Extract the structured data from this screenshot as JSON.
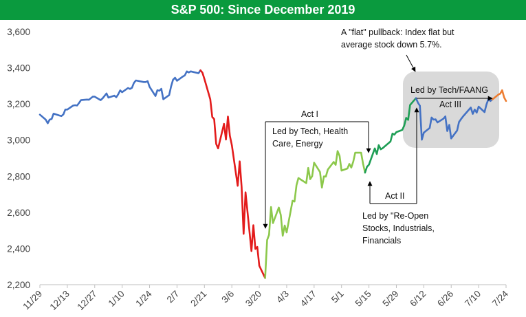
{
  "title": "S&P 500: Since December 2019",
  "colors": {
    "title_bg": "#0a9a3e",
    "blue": "#4472c4",
    "red": "#e31b1b",
    "light_green": "#8cc84b",
    "green": "#1e9e55",
    "orange": "#ed7d31",
    "highlight_box": "#d9d9d9"
  },
  "chart_data": {
    "type": "line",
    "title": "S&P 500: Since December 2019",
    "xlabel": "",
    "ylabel": "",
    "ylim": [
      2200,
      3600
    ],
    "yticks": [
      2200,
      2400,
      2600,
      2800,
      3000,
      3200,
      3400,
      3600
    ],
    "ytick_labels": [
      "2,200",
      "2,400",
      "2,600",
      "2,800",
      "3,000",
      "3,200",
      "3,400",
      "3,600"
    ],
    "xticks": [
      "2019-11-29",
      "2019-12-13",
      "2019-12-27",
      "2020-01-10",
      "2020-01-24",
      "2020-02-07",
      "2020-02-21",
      "2020-03-06",
      "2020-03-20",
      "2020-04-03",
      "2020-04-17",
      "2020-05-01",
      "2020-05-15",
      "2020-05-29",
      "2020-06-12",
      "2020-06-26",
      "2020-07-10",
      "2020-07-24"
    ],
    "xtick_labels": [
      "11/29",
      "12/13",
      "12/27",
      "1/10",
      "1/24",
      "2/7",
      "2/21",
      "3/6",
      "3/20",
      "4/3",
      "4/17",
      "5/1",
      "5/15",
      "5/29",
      "6/12",
      "6/26",
      "7/10",
      "7/24"
    ],
    "xlim": [
      "2019-11-29",
      "2020-07-24"
    ],
    "grid": false,
    "legend": "none",
    "series": [
      {
        "color": "#4472c4",
        "points": [
          [
            "2019-11-29",
            3141
          ],
          [
            "2019-12-02",
            3113
          ],
          [
            "2019-12-03",
            3093
          ],
          [
            "2019-12-04",
            3113
          ],
          [
            "2019-12-05",
            3117
          ],
          [
            "2019-12-06",
            3146
          ],
          [
            "2019-12-09",
            3136
          ],
          [
            "2019-12-10",
            3133
          ],
          [
            "2019-12-11",
            3142
          ],
          [
            "2019-12-12",
            3169
          ],
          [
            "2019-12-13",
            3169
          ],
          [
            "2019-12-16",
            3191
          ],
          [
            "2019-12-17",
            3193
          ],
          [
            "2019-12-18",
            3191
          ],
          [
            "2019-12-19",
            3206
          ],
          [
            "2019-12-20",
            3221
          ],
          [
            "2019-12-23",
            3224
          ],
          [
            "2019-12-24",
            3223
          ],
          [
            "2019-12-26",
            3240
          ],
          [
            "2019-12-27",
            3240
          ],
          [
            "2019-12-30",
            3221
          ],
          [
            "2019-12-31",
            3231
          ],
          [
            "2020-01-02",
            3258
          ],
          [
            "2020-01-03",
            3235
          ],
          [
            "2020-01-06",
            3246
          ],
          [
            "2020-01-07",
            3237
          ],
          [
            "2020-01-08",
            3253
          ],
          [
            "2020-01-09",
            3275
          ],
          [
            "2020-01-10",
            3265
          ],
          [
            "2020-01-13",
            3288
          ],
          [
            "2020-01-14",
            3283
          ],
          [
            "2020-01-15",
            3289
          ],
          [
            "2020-01-16",
            3316
          ],
          [
            "2020-01-17",
            3330
          ],
          [
            "2020-01-21",
            3321
          ],
          [
            "2020-01-22",
            3321
          ],
          [
            "2020-01-23",
            3326
          ],
          [
            "2020-01-24",
            3295
          ],
          [
            "2020-01-27",
            3244
          ],
          [
            "2020-01-28",
            3276
          ],
          [
            "2020-01-29",
            3273
          ],
          [
            "2020-01-30",
            3284
          ],
          [
            "2020-01-31",
            3226
          ],
          [
            "2020-02-03",
            3249
          ],
          [
            "2020-02-04",
            3298
          ],
          [
            "2020-02-05",
            3334
          ],
          [
            "2020-02-06",
            3345
          ],
          [
            "2020-02-07",
            3328
          ],
          [
            "2020-02-10",
            3352
          ],
          [
            "2020-02-11",
            3358
          ],
          [
            "2020-02-12",
            3380
          ],
          [
            "2020-02-13",
            3374
          ],
          [
            "2020-02-14",
            3380
          ],
          [
            "2020-02-18",
            3370
          ],
          [
            "2020-02-19",
            3386
          ]
        ]
      },
      {
        "color": "#e31b1b",
        "points": [
          [
            "2020-02-19",
            3386
          ],
          [
            "2020-02-20",
            3373
          ],
          [
            "2020-02-21",
            3338
          ],
          [
            "2020-02-24",
            3226
          ],
          [
            "2020-02-25",
            3128
          ],
          [
            "2020-02-26",
            3116
          ],
          [
            "2020-02-27",
            2979
          ],
          [
            "2020-02-28",
            2954
          ],
          [
            "2020-03-02",
            3090
          ],
          [
            "2020-03-03",
            3003
          ],
          [
            "2020-03-04",
            3130
          ],
          [
            "2020-03-05",
            3024
          ],
          [
            "2020-03-06",
            2972
          ],
          [
            "2020-03-09",
            2747
          ],
          [
            "2020-03-10",
            2882
          ],
          [
            "2020-03-11",
            2741
          ],
          [
            "2020-03-12",
            2481
          ],
          [
            "2020-03-13",
            2711
          ],
          [
            "2020-03-16",
            2386
          ],
          [
            "2020-03-17",
            2529
          ],
          [
            "2020-03-18",
            2398
          ],
          [
            "2020-03-19",
            2409
          ],
          [
            "2020-03-20",
            2305
          ],
          [
            "2020-03-23",
            2237
          ]
        ]
      },
      {
        "color": "#8cc84b",
        "points": [
          [
            "2020-03-23",
            2237
          ],
          [
            "2020-03-24",
            2447
          ],
          [
            "2020-03-25",
            2476
          ],
          [
            "2020-03-26",
            2630
          ],
          [
            "2020-03-27",
            2541
          ],
          [
            "2020-03-30",
            2627
          ],
          [
            "2020-03-31",
            2585
          ],
          [
            "2020-04-01",
            2471
          ],
          [
            "2020-04-02",
            2527
          ],
          [
            "2020-04-03",
            2489
          ],
          [
            "2020-04-06",
            2664
          ],
          [
            "2020-04-07",
            2660
          ],
          [
            "2020-04-08",
            2750
          ],
          [
            "2020-04-09",
            2790
          ],
          [
            "2020-04-13",
            2762
          ],
          [
            "2020-04-14",
            2846
          ],
          [
            "2020-04-15",
            2784
          ],
          [
            "2020-04-16",
            2800
          ],
          [
            "2020-04-17",
            2875
          ],
          [
            "2020-04-20",
            2823
          ],
          [
            "2020-04-21",
            2737
          ],
          [
            "2020-04-22",
            2799
          ],
          [
            "2020-04-23",
            2798
          ],
          [
            "2020-04-24",
            2837
          ],
          [
            "2020-04-27",
            2879
          ],
          [
            "2020-04-28",
            2863
          ],
          [
            "2020-04-29",
            2939
          ],
          [
            "2020-04-30",
            2912
          ],
          [
            "2020-05-01",
            2831
          ],
          [
            "2020-05-04",
            2843
          ],
          [
            "2020-05-05",
            2868
          ],
          [
            "2020-05-06",
            2848
          ],
          [
            "2020-05-07",
            2881
          ],
          [
            "2020-05-08",
            2930
          ],
          [
            "2020-05-11",
            2930
          ],
          [
            "2020-05-12",
            2870
          ],
          [
            "2020-05-13",
            2820
          ]
        ]
      },
      {
        "color": "#1e9e55",
        "points": [
          [
            "2020-05-13",
            2820
          ],
          [
            "2020-05-14",
            2852
          ],
          [
            "2020-05-15",
            2864
          ],
          [
            "2020-05-18",
            2954
          ],
          [
            "2020-05-19",
            2923
          ],
          [
            "2020-05-20",
            2972
          ],
          [
            "2020-05-21",
            2949
          ],
          [
            "2020-05-22",
            2955
          ],
          [
            "2020-05-26",
            2992
          ],
          [
            "2020-05-27",
            3036
          ],
          [
            "2020-05-28",
            3030
          ],
          [
            "2020-05-29",
            3044
          ],
          [
            "2020-06-01",
            3056
          ],
          [
            "2020-06-02",
            3080
          ],
          [
            "2020-06-03",
            3123
          ],
          [
            "2020-06-04",
            3112
          ],
          [
            "2020-06-05",
            3194
          ],
          [
            "2020-06-08",
            3232
          ]
        ]
      },
      {
        "color": "#4472c4",
        "points": [
          [
            "2020-06-08",
            3232
          ],
          [
            "2020-06-09",
            3207
          ],
          [
            "2020-06-10",
            3190
          ],
          [
            "2020-06-11",
            3002
          ],
          [
            "2020-06-12",
            3041
          ],
          [
            "2020-06-15",
            3067
          ],
          [
            "2020-06-16",
            3125
          ],
          [
            "2020-06-17",
            3113
          ],
          [
            "2020-06-18",
            3115
          ],
          [
            "2020-06-19",
            3098
          ],
          [
            "2020-06-22",
            3118
          ],
          [
            "2020-06-23",
            3131
          ],
          [
            "2020-06-24",
            3050
          ],
          [
            "2020-06-25",
            3084
          ],
          [
            "2020-06-26",
            3009
          ],
          [
            "2020-06-29",
            3053
          ],
          [
            "2020-06-30",
            3100
          ],
          [
            "2020-07-01",
            3116
          ],
          [
            "2020-07-02",
            3130
          ],
          [
            "2020-07-06",
            3180
          ],
          [
            "2020-07-07",
            3145
          ],
          [
            "2020-07-08",
            3169
          ],
          [
            "2020-07-09",
            3152
          ],
          [
            "2020-07-10",
            3185
          ],
          [
            "2020-07-13",
            3155
          ],
          [
            "2020-07-14",
            3197
          ],
          [
            "2020-07-15",
            3227
          ],
          [
            "2020-07-16",
            3216
          ],
          [
            "2020-07-17",
            3225
          ]
        ]
      },
      {
        "color": "#ed7d31",
        "points": [
          [
            "2020-07-17",
            3225
          ],
          [
            "2020-07-20",
            3251
          ],
          [
            "2020-07-21",
            3257
          ],
          [
            "2020-07-22",
            3276
          ],
          [
            "2020-07-23",
            3236
          ],
          [
            "2020-07-24",
            3216
          ]
        ]
      }
    ],
    "annotations": [
      {
        "text": "A \"flat\" pullback: Index flat but average stock down 5.7%."
      },
      {
        "text": "Led by Tech/FAANG"
      },
      {
        "text": "Act III"
      },
      {
        "text": "Act I"
      },
      {
        "text": "Led by Tech, Health Care, Energy"
      },
      {
        "text": "Act II"
      },
      {
        "text": "Led by \"Re-Open Stocks, Industrials, Financials"
      }
    ]
  }
}
